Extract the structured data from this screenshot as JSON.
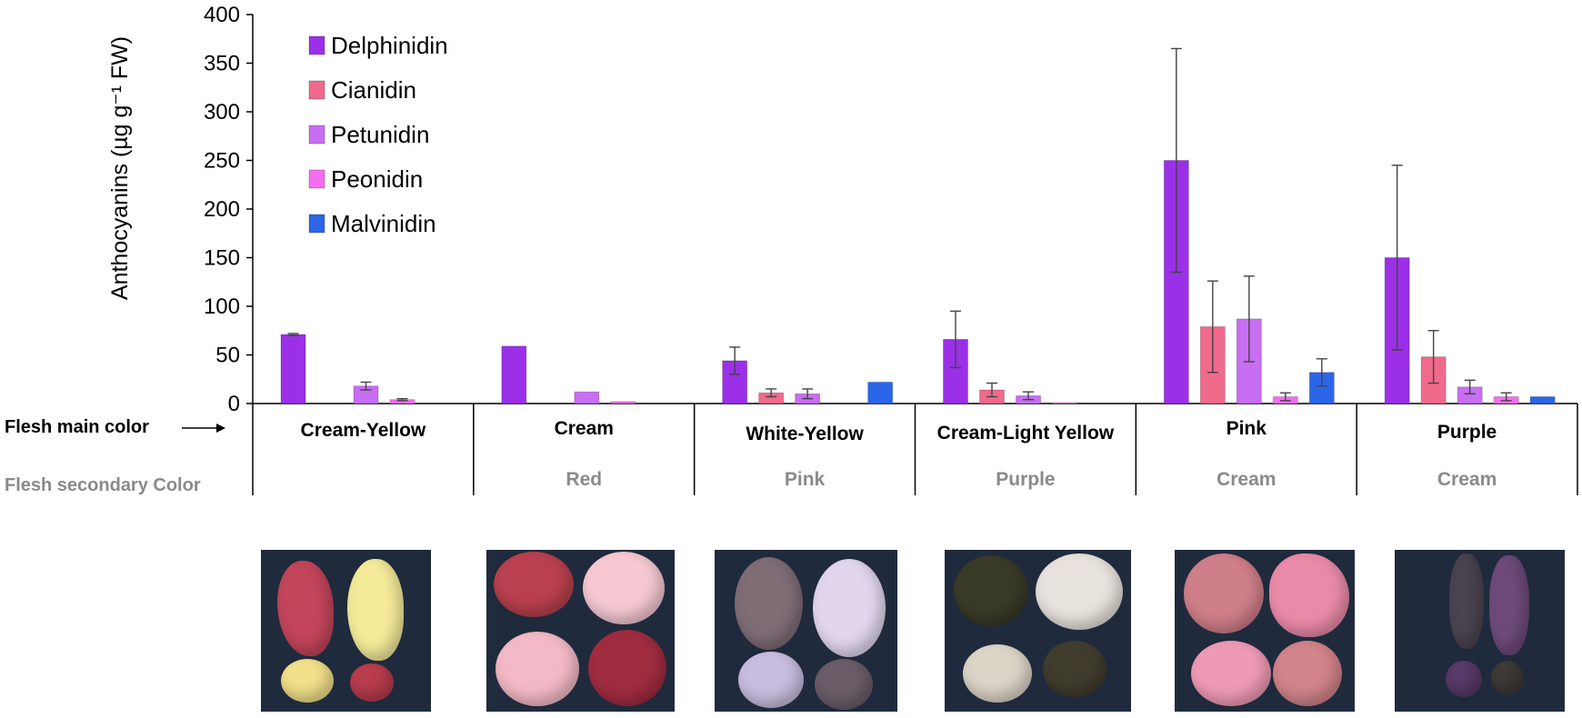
{
  "chart_data": {
    "type": "bar",
    "ylabel": "Anthocyanins (µg g⁻¹ FW)",
    "ylim": [
      0,
      400
    ],
    "yticks": [
      0,
      50,
      100,
      150,
      200,
      250,
      300,
      350,
      400
    ],
    "categories": [
      "Cream-Yellow",
      "Cream",
      "White-Yellow",
      "Cream-Light Yellow",
      "Pink",
      "Purple"
    ],
    "secondary_categories": [
      "",
      "Red",
      "Pink",
      "Purple",
      "Cream",
      "Cream"
    ],
    "row_titles": {
      "main": "Flesh main color",
      "secondary": "Flesh secondary Color"
    },
    "series": [
      {
        "name": "Delphinidin",
        "color": "#9b30e8",
        "values": [
          71,
          59,
          44,
          66,
          250,
          150
        ],
        "errors": [
          1,
          0,
          14,
          29,
          115,
          95
        ]
      },
      {
        "name": "Cianidin",
        "color": "#f06a8c",
        "values": [
          0,
          0,
          11,
          14,
          79,
          48
        ],
        "errors": [
          0,
          0,
          4,
          7,
          47,
          27
        ]
      },
      {
        "name": "Petunidin",
        "color": "#c86ef2",
        "values": [
          18,
          12,
          10,
          8,
          87,
          17
        ],
        "errors": [
          4,
          0,
          5,
          4,
          44,
          7
        ]
      },
      {
        "name": "Peonidin",
        "color": "#f56ef0",
        "values": [
          4,
          2,
          0,
          1,
          7,
          7
        ],
        "errors": [
          1,
          0,
          0,
          0,
          4,
          4
        ]
      },
      {
        "name": "Malvinidin",
        "color": "#2b66e8",
        "values": [
          0,
          0,
          22,
          0,
          32,
          7
        ],
        "errors": [
          0,
          0,
          0,
          0,
          14,
          0
        ]
      }
    ],
    "legend_position": "top-left",
    "grid": false
  },
  "photos": [
    {
      "category": "Cream-Yellow"
    },
    {
      "category": "Cream"
    },
    {
      "category": "White-Yellow"
    },
    {
      "category": "Cream-Light Yellow"
    },
    {
      "category": "Pink"
    },
    {
      "category": "Purple"
    }
  ]
}
